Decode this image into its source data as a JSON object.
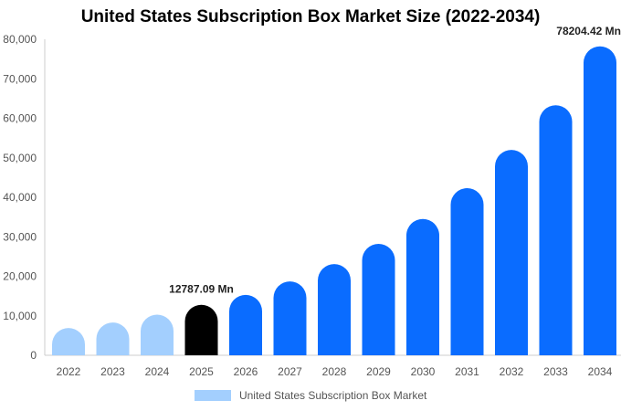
{
  "chart_data": {
    "type": "bar",
    "title": "United States Subscription Box Market Size (2022-2034)",
    "categories": [
      "2022",
      "2023",
      "2024",
      "2025",
      "2026",
      "2027",
      "2028",
      "2029",
      "2030",
      "2031",
      "2032",
      "2033",
      "2034"
    ],
    "series": [
      {
        "name": "United States Subscription Box Market",
        "values": [
          6900,
          8300,
          10300,
          12787.09,
          15300,
          18700,
          23100,
          28200,
          34500,
          42300,
          52000,
          63300,
          78204.42
        ]
      }
    ],
    "data_labels": [
      {
        "category": "2025",
        "text": "12787.09 Mn"
      },
      {
        "category": "2034",
        "text": "78204.42 Mn"
      }
    ],
    "yticks": [
      "0",
      "10,000",
      "20,000",
      "30,000",
      "40,000",
      "50,000",
      "60,000",
      "70,000",
      "80,000"
    ],
    "ylim": [
      0,
      80000
    ],
    "xlabel": "",
    "ylabel": "",
    "grid": false,
    "legend_position": "bottom",
    "colors": {
      "historical": "#a3cffe",
      "base_year": "#000000",
      "forecast": "#0a6cff"
    },
    "color_groups": [
      "historical",
      "historical",
      "historical",
      "base_year",
      "forecast",
      "forecast",
      "forecast",
      "forecast",
      "forecast",
      "forecast",
      "forecast",
      "forecast",
      "forecast"
    ]
  }
}
